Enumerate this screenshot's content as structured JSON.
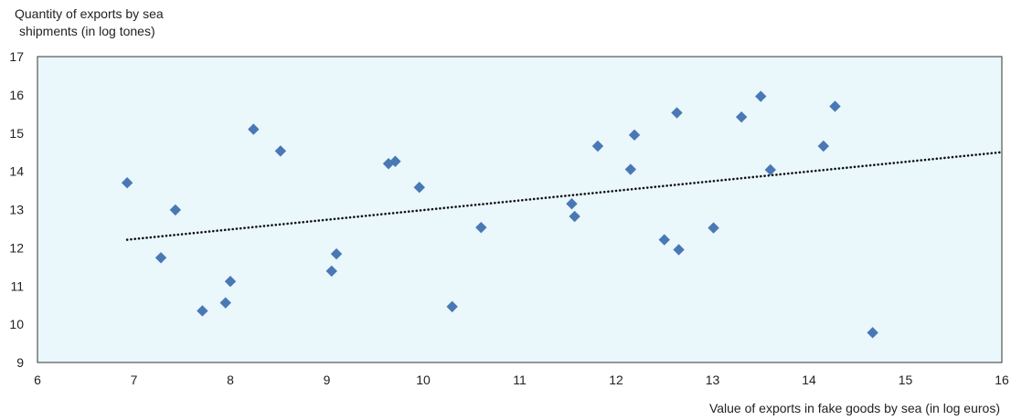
{
  "chart_data": {
    "type": "scatter",
    "ylabel_lines": [
      "Quantity of exports by sea",
      "shipments (in log tones)"
    ],
    "xlabel": "Value of exports in fake goods by sea (in log euros)",
    "xlim": [
      6,
      16
    ],
    "ylim": [
      9,
      17
    ],
    "x_ticks": [
      6,
      7,
      8,
      9,
      10,
      11,
      12,
      13,
      14,
      15,
      16
    ],
    "y_ticks": [
      9,
      10,
      11,
      12,
      13,
      14,
      15,
      16,
      17
    ],
    "grid": false,
    "series": [
      {
        "marker": "diamond",
        "color": "#4a78b5",
        "points": [
          {
            "x": 6.93,
            "y": 13.7
          },
          {
            "x": 7.28,
            "y": 11.74
          },
          {
            "x": 7.43,
            "y": 12.99
          },
          {
            "x": 7.71,
            "y": 10.35
          },
          {
            "x": 7.95,
            "y": 10.56
          },
          {
            "x": 8.0,
            "y": 11.12
          },
          {
            "x": 8.24,
            "y": 15.1
          },
          {
            "x": 8.52,
            "y": 14.53
          },
          {
            "x": 9.05,
            "y": 11.39
          },
          {
            "x": 9.1,
            "y": 11.84
          },
          {
            "x": 9.64,
            "y": 14.2
          },
          {
            "x": 9.71,
            "y": 14.26
          },
          {
            "x": 9.96,
            "y": 13.58
          },
          {
            "x": 10.3,
            "y": 10.46
          },
          {
            "x": 10.6,
            "y": 12.53
          },
          {
            "x": 11.54,
            "y": 13.15
          },
          {
            "x": 11.57,
            "y": 12.82
          },
          {
            "x": 11.81,
            "y": 14.66
          },
          {
            "x": 12.15,
            "y": 14.05
          },
          {
            "x": 12.19,
            "y": 14.95
          },
          {
            "x": 12.5,
            "y": 12.21
          },
          {
            "x": 12.63,
            "y": 15.53
          },
          {
            "x": 12.65,
            "y": 11.95
          },
          {
            "x": 13.01,
            "y": 12.52
          },
          {
            "x": 13.3,
            "y": 15.42
          },
          {
            "x": 13.5,
            "y": 15.96
          },
          {
            "x": 13.6,
            "y": 14.04
          },
          {
            "x": 14.15,
            "y": 14.66
          },
          {
            "x": 14.27,
            "y": 15.7
          },
          {
            "x": 14.66,
            "y": 9.78
          }
        ]
      }
    ],
    "trendline": {
      "style": "dotted",
      "color": "#111111",
      "x0": 6.93,
      "y0": 12.21,
      "x1": 16.0,
      "y1": 14.5
    },
    "colors": {
      "plot_background": "#eaf7fb",
      "plot_border": "#333333"
    }
  }
}
